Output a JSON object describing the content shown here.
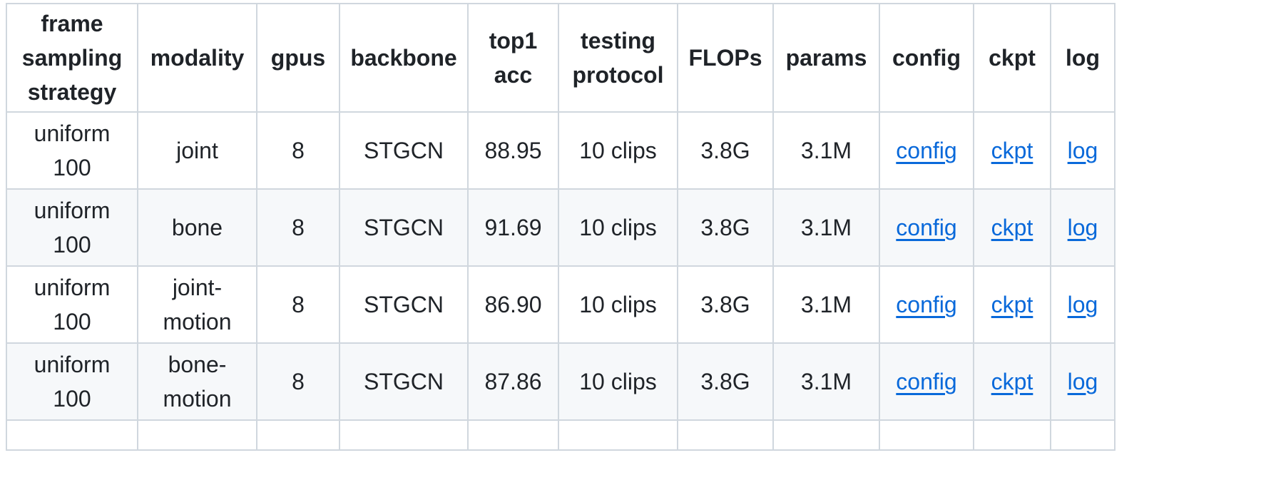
{
  "table": {
    "headers": [
      [
        "frame",
        "sampling",
        "strategy"
      ],
      [
        "modality"
      ],
      [
        "gpus"
      ],
      [
        "backbone"
      ],
      [
        "top1",
        "acc"
      ],
      [
        "testing",
        "protocol"
      ],
      [
        "FLOPs"
      ],
      [
        "params"
      ],
      [
        "config"
      ],
      [
        "ckpt"
      ],
      [
        "log"
      ]
    ],
    "rows": [
      {
        "frame_sampling_strategy": [
          "uniform",
          "100"
        ],
        "modality": [
          "joint"
        ],
        "gpus": "8",
        "backbone": "STGCN",
        "top1_acc": "88.95",
        "testing_protocol": "10 clips",
        "flops": "3.8G",
        "params": "3.1M",
        "config": "config",
        "ckpt": "ckpt",
        "log": "log"
      },
      {
        "frame_sampling_strategy": [
          "uniform",
          "100"
        ],
        "modality": [
          "bone"
        ],
        "gpus": "8",
        "backbone": "STGCN",
        "top1_acc": "91.69",
        "testing_protocol": "10 clips",
        "flops": "3.8G",
        "params": "3.1M",
        "config": "config",
        "ckpt": "ckpt",
        "log": "log"
      },
      {
        "frame_sampling_strategy": [
          "uniform",
          "100"
        ],
        "modality": [
          "joint-",
          "motion"
        ],
        "gpus": "8",
        "backbone": "STGCN",
        "top1_acc": "86.90",
        "testing_protocol": "10 clips",
        "flops": "3.8G",
        "params": "3.1M",
        "config": "config",
        "ckpt": "ckpt",
        "log": "log"
      },
      {
        "frame_sampling_strategy": [
          "uniform",
          "100"
        ],
        "modality": [
          "bone-",
          "motion"
        ],
        "gpus": "8",
        "backbone": "STGCN",
        "top1_acc": "87.86",
        "testing_protocol": "10 clips",
        "flops": "3.8G",
        "params": "3.1M",
        "config": "config",
        "ckpt": "ckpt",
        "log": "log"
      }
    ]
  }
}
